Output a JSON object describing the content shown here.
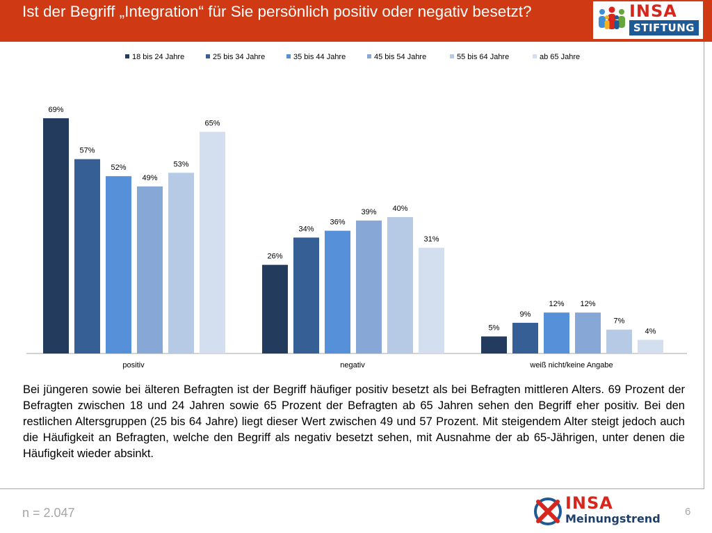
{
  "header": {
    "title": "Ist der Begriff „Integration“ für Sie persönlich positiv oder negativ besetzt?",
    "logo_brand": "INSA",
    "logo_sub": "STIFTUNG"
  },
  "chart_data": {
    "type": "bar",
    "categories": [
      "positiv",
      "negativ",
      "weiß nicht/keine Angabe"
    ],
    "series": [
      {
        "name": "18 bis 24 Jahre",
        "color": "#233b5d",
        "values": [
          69,
          26,
          5
        ]
      },
      {
        "name": "25 bis 34 Jahre",
        "color": "#355f95",
        "values": [
          57,
          34,
          9
        ]
      },
      {
        "name": "35 bis 44 Jahre",
        "color": "#5590d8",
        "values": [
          52,
          36,
          12
        ]
      },
      {
        "name": "45 bis 54 Jahre",
        "color": "#87a7d6",
        "values": [
          49,
          39,
          12
        ]
      },
      {
        "name": "55 bis 64 Jahre",
        "color": "#b6cae6",
        "values": [
          53,
          40,
          7
        ]
      },
      {
        "name": "ab 65 Jahre",
        "color": "#d3deee",
        "values": [
          65,
          31,
          4
        ]
      }
    ],
    "value_suffix": "%",
    "legend_position": "top",
    "grid": false,
    "ylim": [
      0,
      70
    ]
  },
  "description": "Bei jüngeren sowie bei älteren Befragten ist der Begriff häufiger positiv besetzt als bei Befragten mittleren Alters. 69 Prozent der Befragten zwischen 18 und 24 Jahren sowie 65 Prozent der Befragten ab 65 Jahren sehen den Begriff eher positiv. Bei den restlichen Altersgruppen (25 bis 64 Jahre) liegt dieser Wert zwischen 49 und 57 Prozent. Mit steigendem Alter steigt jedoch auch die Häufigkeit an Befragten, welche den Begriff als negativ besetzt sehen, mit Ausnahme der ab 65-Jährigen, unter denen die Häufigkeit wieder absinkt.",
  "footer": {
    "sample": "n = 2.047",
    "page_number": "6",
    "logo_brand": "INSA",
    "logo_sub": "Meinungstrend"
  },
  "colors": {
    "header_bg": "#cf3a14",
    "brand_red": "#d7261b",
    "brand_blue": "#1d5a96"
  }
}
